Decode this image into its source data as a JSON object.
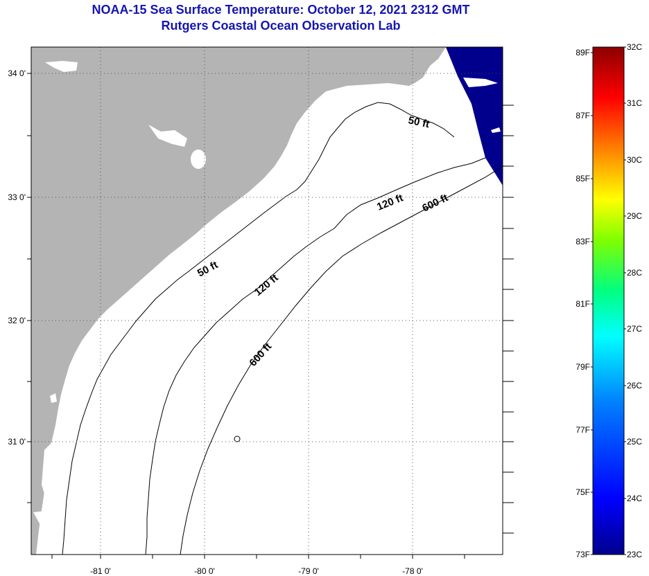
{
  "header": {
    "title": "NOAA-15 Sea Surface Temperature:  October 12, 2021 2312 GMT",
    "subtitle": "Rutgers Coastal Ocean Observation Lab"
  },
  "map": {
    "x_ticks": [
      "-81 0'",
      "-80 0'",
      "-79 0'",
      "-78 0'"
    ],
    "y_ticks": [
      "34 0'",
      "33 0'",
      "32 0'",
      "31 0'"
    ],
    "contours": [
      "50 ft",
      "50 ft",
      "120 ft",
      "120 ft",
      "600 ft",
      "600 ft"
    ],
    "colors": {
      "land": "#b4b4b4",
      "water": "#ffffff",
      "sst_patch": "#00008c",
      "grid": "#555555"
    }
  },
  "colorbar": {
    "fahrenheit": [
      "89F",
      "87F",
      "85F",
      "83F",
      "81F",
      "79F",
      "77F",
      "75F",
      "73F"
    ],
    "celsius": [
      "32C",
      "31C",
      "30C",
      "29C",
      "28C",
      "27C",
      "26C",
      "25C",
      "24C",
      "23C"
    ],
    "stops": [
      "#00008c",
      "#0000ff",
      "#0080ff",
      "#00ffff",
      "#00ff80",
      "#80ff00",
      "#ffff00",
      "#ff8000",
      "#ff0000",
      "#8b0000"
    ]
  }
}
